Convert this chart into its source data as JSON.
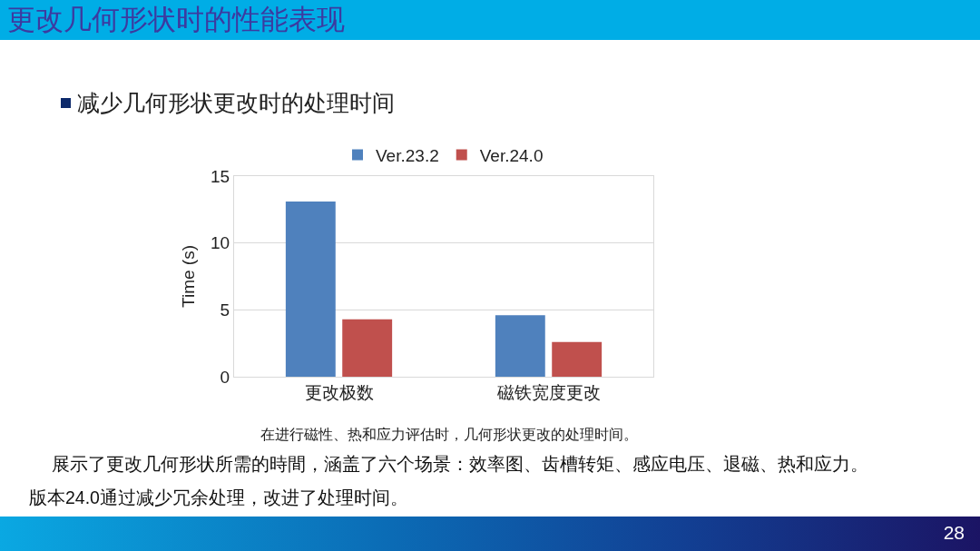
{
  "chart_data": {
    "type": "bar",
    "title": "更改几何形状时的性能表现",
    "subtitle": "减少几何形状更改时的处理时间",
    "ylabel": "Time (s)",
    "categories": [
      "更改极数",
      "磁铁宽度更改"
    ],
    "series": [
      {
        "name": "Ver.23.2",
        "color": "#4f81bd",
        "values": [
          13.1,
          4.6
        ]
      },
      {
        "name": "Ver.24.0",
        "color": "#c0504d",
        "values": [
          4.3,
          2.6
        ]
      }
    ],
    "ylim": [
      0,
      15
    ],
    "yticks": [
      0,
      5,
      10,
      15
    ],
    "grid": "y",
    "legend": "top",
    "annotations": [
      "在进行磁性、热和应力评估时，几何形状更改的处理时间。",
      "展示了更改几何形状所需的時間，涵盖了六个场景：效率图、齿槽转矩、感应电压、退磁、热和应力。",
      "版本24.0通过减少冗余处理，改进了处理时间。",
      "28"
    ]
  }
}
